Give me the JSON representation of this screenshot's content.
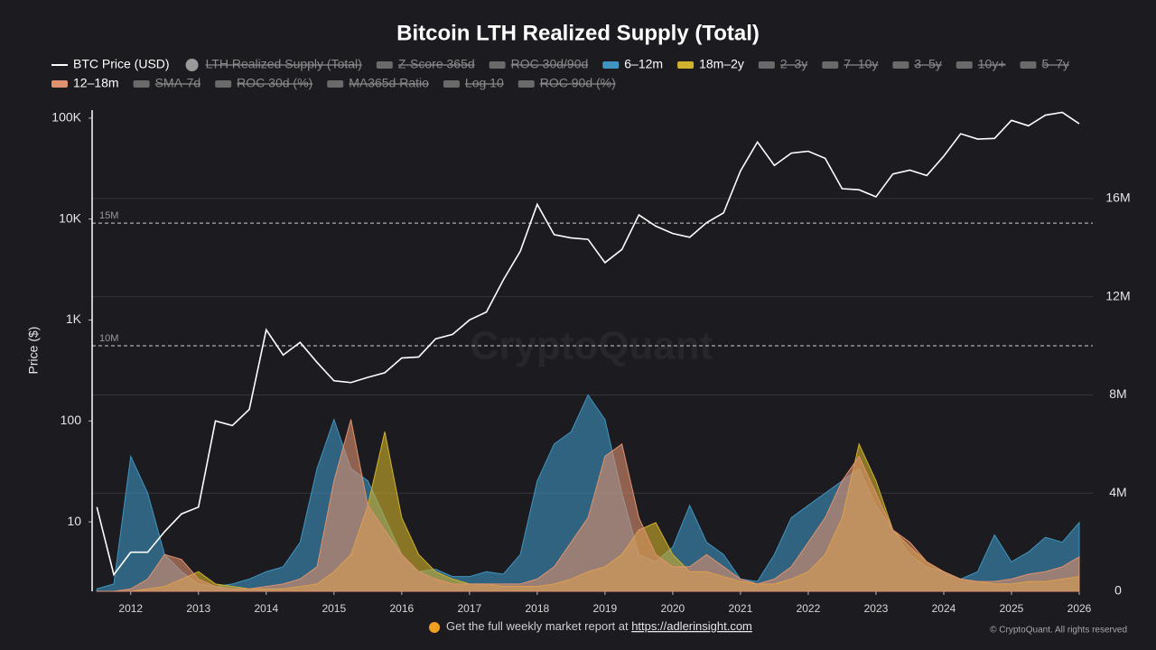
{
  "chart_data": {
    "type": "line",
    "title": "Bitcoin LTH Realized Supply (Total)",
    "y_label": "Price ($)",
    "ylog": true,
    "ylim": [
      2.05,
      120000
    ],
    "yticks": [
      10,
      100,
      {
        "value": 1000,
        "label": "1K"
      },
      {
        "value": 10000,
        "label": "10K"
      },
      {
        "value": 100000,
        "label": "100K"
      }
    ],
    "y2lim": [
      0,
      19600000
    ],
    "y2ticks": [
      0,
      {
        "value": 4000000,
        "label": "4M"
      },
      {
        "value": 8000000,
        "label": "8M"
      },
      {
        "value": 12000000,
        "label": "12M"
      },
      {
        "value": 16000000,
        "label": "16M"
      }
    ],
    "grid": true,
    "xlim": [
      2011.43,
      2026.2
    ],
    "xticks": [
      2012,
      2013,
      2014,
      2015,
      2016,
      2017,
      2018,
      2019,
      2020,
      2021,
      2022,
      2023,
      2024,
      2025,
      2026
    ],
    "reference_lines": [
      {
        "value": 15000000,
        "label": "15M",
        "axis": "y2"
      },
      {
        "value": 10000000,
        "label": "10M",
        "axis": "y2"
      }
    ],
    "watermark": "CryptoQuant",
    "x": [
      2011.5,
      2011.75,
      2012,
      2012.25,
      2012.5,
      2012.75,
      2013,
      2013.25,
      2013.5,
      2013.75,
      2014,
      2014.25,
      2014.5,
      2014.75,
      2015,
      2015.25,
      2015.5,
      2015.75,
      2016,
      2016.25,
      2016.5,
      2016.75,
      2017,
      2017.25,
      2017.5,
      2017.75,
      2018,
      2018.25,
      2018.5,
      2018.75,
      2019,
      2019.25,
      2019.5,
      2019.75,
      2020,
      2020.25,
      2020.5,
      2020.75,
      2021,
      2021.25,
      2021.5,
      2021.75,
      2022,
      2022.25,
      2022.5,
      2022.75,
      2023,
      2023.25,
      2023.5,
      2023.75,
      2024,
      2024.25,
      2024.5,
      2024.75,
      2025,
      2025.25,
      2025.5,
      2025.75,
      2026
    ],
    "series": [
      {
        "name": "BTC Price (USD)",
        "color": "#ffffff",
        "legend_marker": "line",
        "values": [
          14,
          3,
          5,
          5,
          8,
          12,
          14,
          100,
          90,
          130,
          800,
          450,
          600,
          380,
          250,
          240,
          270,
          300,
          420,
          430,
          650,
          720,
          1000,
          1200,
          2500,
          4800,
          14000,
          7000,
          6500,
          6300,
          3700,
          5000,
          11000,
          8500,
          7200,
          6600,
          9200,
          11500,
          30000,
          58000,
          34000,
          45000,
          47000,
          40000,
          20000,
          19500,
          16600,
          28000,
          30500,
          27000,
          42000,
          70000,
          62000,
          63000,
          95000,
          84000,
          107000,
          114000,
          88000
        ]
      },
      {
        "name": "LTH Realized Supply (Total)",
        "color": "#9a9a9a",
        "legend_marker": "circle",
        "hidden": true
      },
      {
        "name": "Z-Score 365d",
        "color": "#6a6a6a",
        "legend_marker": "rect",
        "hidden": true
      },
      {
        "name": "ROC 30d/90d",
        "color": "#6a6a6a",
        "legend_marker": "rect",
        "hidden": true
      },
      {
        "name": "6–12m",
        "color": "#3f95c0",
        "legend_marker": "rect",
        "axis": "y2",
        "values": [
          100000.0,
          300000.0,
          5500000.0,
          4000000.0,
          1500000.0,
          800000.0,
          300000.0,
          200000.0,
          300000.0,
          500000.0,
          800000.0,
          1000000.0,
          2000000.0,
          5000000.0,
          7000000.0,
          5000000.0,
          4500000.0,
          3000000.0,
          1500000.0,
          800000.0,
          900000.0,
          600000.0,
          600000.0,
          800000.0,
          700000.0,
          1500000.0,
          4500000.0,
          6000000.0,
          6500000.0,
          8000000.0,
          7000000.0,
          4000000.0,
          1500000.0,
          1200000.0,
          1800000.0,
          3500000.0,
          2000000.0,
          1500000.0,
          500000.0,
          400000.0,
          1500000.0,
          3000000.0,
          3500000.0,
          4000000.0,
          4500000.0,
          5000000.0,
          3500000.0,
          2500000.0,
          1500000.0,
          1000000.0,
          800000.0,
          500000.0,
          800000.0,
          2300000.0,
          1200000.0,
          1600000.0,
          2200000.0,
          2000000.0,
          2800000.0
        ]
      },
      {
        "name": "18m–2y",
        "color": "#d2b22a",
        "legend_marker": "rect",
        "axis": "y2",
        "values": [
          0,
          0,
          0,
          100000.0,
          200000.0,
          500000.0,
          800000.0,
          300000.0,
          200000.0,
          100000.0,
          100000.0,
          100000.0,
          200000.0,
          300000.0,
          800000.0,
          1500000.0,
          3500000.0,
          6500000.0,
          3000000.0,
          1500000.0,
          800000.0,
          500000.0,
          300000.0,
          300000.0,
          200000.0,
          200000.0,
          200000.0,
          300000.0,
          500000.0,
          800000.0,
          1000000.0,
          1500000.0,
          2500000.0,
          2800000.0,
          1500000.0,
          800000.0,
          800000.0,
          600000.0,
          400000.0,
          300000.0,
          300000.0,
          500000.0,
          800000.0,
          1500000.0,
          3000000.0,
          6000000.0,
          4500000.0,
          2500000.0,
          1800000.0,
          1200000.0,
          800000.0,
          500000.0,
          400000.0,
          300000.0,
          300000.0,
          400000.0,
          400000.0,
          500000.0,
          600000.0
        ]
      },
      {
        "name": "2–3y",
        "color": "#6a6a6a",
        "legend_marker": "rect",
        "hidden": true
      },
      {
        "name": "7–10y",
        "color": "#6a6a6a",
        "legend_marker": "rect",
        "hidden": true
      },
      {
        "name": "3–5y",
        "color": "#6a6a6a",
        "legend_marker": "rect",
        "hidden": true
      },
      {
        "name": "10y+",
        "color": "#6a6a6a",
        "legend_marker": "rect",
        "hidden": true
      },
      {
        "name": "5–7y",
        "color": "#6a6a6a",
        "legend_marker": "rect",
        "hidden": true
      },
      {
        "name": "12–18m",
        "color": "#e0916e",
        "legend_marker": "rect",
        "axis": "y2",
        "values": [
          0,
          0,
          100000.0,
          500000.0,
          1500000.0,
          1300000.0,
          500000.0,
          200000.0,
          100000.0,
          100000.0,
          200000.0,
          300000.0,
          500000.0,
          1000000.0,
          4500000.0,
          7000000.0,
          3500000.0,
          2500000.0,
          1500000.0,
          800000.0,
          500000.0,
          300000.0,
          300000.0,
          300000.0,
          300000.0,
          300000.0,
          500000.0,
          1000000.0,
          2000000.0,
          3000000.0,
          5500000.0,
          6000000.0,
          3000000.0,
          1500000.0,
          1000000.0,
          1000000.0,
          1500000.0,
          1000000.0,
          500000.0,
          300000.0,
          500000.0,
          1000000.0,
          2000000.0,
          3000000.0,
          4500000.0,
          5500000.0,
          4000000.0,
          2500000.0,
          2000000.0,
          1200000.0,
          800000.0,
          500000.0,
          400000.0,
          400000.0,
          500000.0,
          700000.0,
          800000.0,
          1000000.0,
          1400000.0
        ]
      },
      {
        "name": "SMA-7d",
        "color": "#6a6a6a",
        "legend_marker": "rect",
        "hidden": true
      },
      {
        "name": "ROC 30d (%)",
        "color": "#6a6a6a",
        "legend_marker": "rect",
        "hidden": true
      },
      {
        "name": "MA365d Ratio",
        "color": "#6a6a6a",
        "legend_marker": "rect",
        "hidden": true
      },
      {
        "name": "Log 10",
        "color": "#6a6a6a",
        "legend_marker": "rect",
        "hidden": true
      },
      {
        "name": "ROC 90d (%)",
        "color": "#6a6a6a",
        "legend_marker": "rect",
        "hidden": true
      }
    ],
    "footer": {
      "text": "Get the full weekly market report at ",
      "link": "https://adlerinsight.com",
      "copyright": "© CryptoQuant. All rights reserved"
    }
  }
}
